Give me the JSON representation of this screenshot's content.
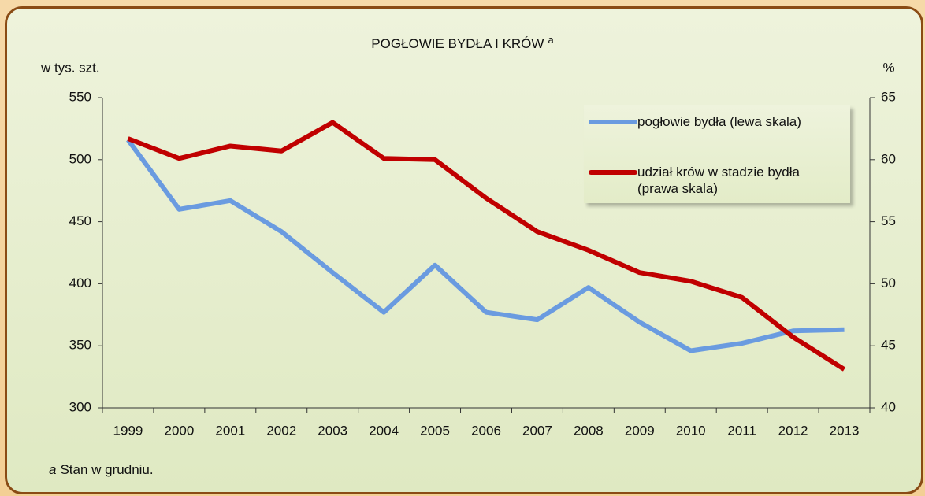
{
  "chart_data": {
    "type": "line",
    "title": "POGŁOWIE BYDŁA I KRÓW",
    "title_marker": "a",
    "y_label": "w tys. szt.",
    "y2_label": "%",
    "categories": [
      "1999",
      "2000",
      "2001",
      "2002",
      "2003",
      "2004",
      "2005",
      "2006",
      "2007",
      "2008",
      "2009",
      "2010",
      "2011",
      "2012",
      "2013"
    ],
    "series": [
      {
        "name": "pogłowie bydła (lewa skala)",
        "color": "#6a9be0",
        "values": [
          516,
          460,
          467,
          442,
          409,
          377,
          415,
          377,
          371,
          397,
          369,
          346,
          352,
          362,
          363
        ]
      },
      {
        "name": "udział krów w stadzie bydła (prawa skala)",
        "color": "#c00000",
        "axis": "y2",
        "values": [
          61.7,
          60.1,
          61.1,
          60.7,
          63.0,
          60.1,
          60.0,
          56.9,
          54.2,
          52.7,
          50.9,
          50.2,
          48.9,
          45.7,
          43.1
        ]
      }
    ],
    "ylim": [
      300,
      550
    ],
    "yticks": [
      300,
      350,
      400,
      450,
      500,
      550
    ],
    "y2lim": [
      40,
      65
    ],
    "y2ticks": [
      40,
      45,
      50,
      55,
      60,
      65
    ],
    "grid": false,
    "legend": "top-right",
    "footnote": {
      "marker": "a",
      "text": "Stan w grudniu."
    }
  }
}
